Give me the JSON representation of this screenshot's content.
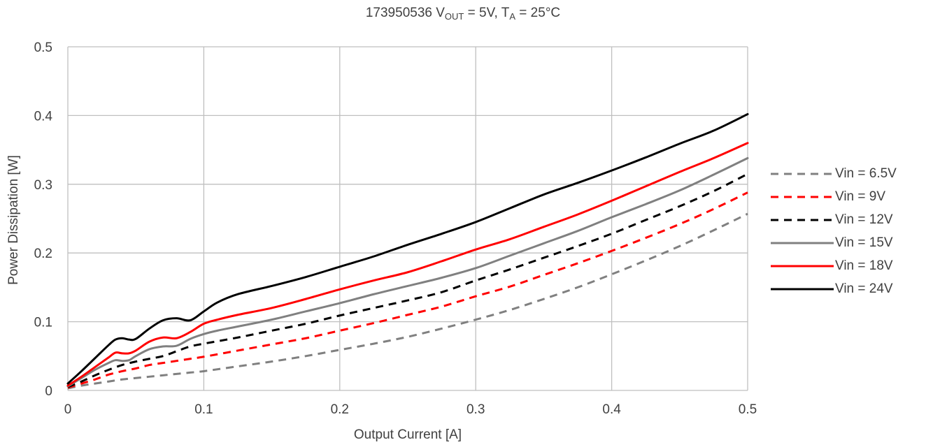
{
  "chart_data": {
    "type": "line",
    "title": {
      "prefix": "173950536 V",
      "sub1": "OUT",
      "mid": " = 5V, T",
      "sub2": "A",
      "suffix": " = 25°C"
    },
    "xlabel": "Output Current [A]",
    "ylabel": "Power Dissipation [W]",
    "xlim": [
      0,
      0.5
    ],
    "ylim": [
      0,
      0.5
    ],
    "xticks": [
      "0",
      "0.1",
      "0.2",
      "0.3",
      "0.4",
      "0.5"
    ],
    "yticks": [
      "0",
      "0.1",
      "0.2",
      "0.3",
      "0.4",
      "0.5"
    ],
    "grid": true,
    "legend_position": "right",
    "series": [
      {
        "name": "Vin = 6.5V",
        "color": "#808080",
        "dashed": true,
        "x": [
          0,
          0.01,
          0.02,
          0.03,
          0.04,
          0.05,
          0.06,
          0.07,
          0.08,
          0.09,
          0.1,
          0.125,
          0.15,
          0.175,
          0.2,
          0.225,
          0.25,
          0.275,
          0.3,
          0.325,
          0.35,
          0.375,
          0.4,
          0.425,
          0.45,
          0.475,
          0.5
        ],
        "y": [
          0.003,
          0.007,
          0.01,
          0.013,
          0.016,
          0.018,
          0.02,
          0.022,
          0.024,
          0.026,
          0.028,
          0.035,
          0.042,
          0.05,
          0.059,
          0.068,
          0.078,
          0.09,
          0.103,
          0.117,
          0.133,
          0.15,
          0.169,
          0.189,
          0.21,
          0.233,
          0.257
        ]
      },
      {
        "name": "Vin = 9V",
        "color": "#ff0000",
        "dashed": true,
        "x": [
          0,
          0.01,
          0.02,
          0.03,
          0.04,
          0.05,
          0.06,
          0.07,
          0.08,
          0.09,
          0.1,
          0.125,
          0.15,
          0.175,
          0.2,
          0.225,
          0.25,
          0.275,
          0.3,
          0.325,
          0.35,
          0.375,
          0.4,
          0.425,
          0.45,
          0.475,
          0.5
        ],
        "y": [
          0.004,
          0.01,
          0.016,
          0.023,
          0.028,
          0.032,
          0.037,
          0.04,
          0.043,
          0.046,
          0.049,
          0.058,
          0.067,
          0.076,
          0.087,
          0.098,
          0.11,
          0.122,
          0.137,
          0.151,
          0.168,
          0.185,
          0.203,
          0.222,
          0.242,
          0.264,
          0.288
        ]
      },
      {
        "name": "Vin = 12V",
        "color": "#000000",
        "dashed": true,
        "x": [
          0,
          0.01,
          0.02,
          0.03,
          0.04,
          0.05,
          0.06,
          0.07,
          0.08,
          0.09,
          0.1,
          0.125,
          0.15,
          0.175,
          0.2,
          0.225,
          0.25,
          0.275,
          0.3,
          0.325,
          0.35,
          0.375,
          0.4,
          0.425,
          0.45,
          0.475,
          0.5
        ],
        "y": [
          0.005,
          0.013,
          0.022,
          0.03,
          0.037,
          0.042,
          0.046,
          0.05,
          0.057,
          0.064,
          0.068,
          0.077,
          0.087,
          0.097,
          0.109,
          0.12,
          0.131,
          0.143,
          0.16,
          0.176,
          0.193,
          0.21,
          0.228,
          0.248,
          0.268,
          0.29,
          0.315
        ]
      },
      {
        "name": "Vin = 15V",
        "color": "#808080",
        "dashed": false,
        "x": [
          0,
          0.01,
          0.02,
          0.03,
          0.035,
          0.04,
          0.045,
          0.05,
          0.06,
          0.07,
          0.08,
          0.09,
          0.1,
          0.11,
          0.125,
          0.15,
          0.175,
          0.2,
          0.225,
          0.25,
          0.275,
          0.3,
          0.325,
          0.35,
          0.375,
          0.4,
          0.425,
          0.45,
          0.475,
          0.5
        ],
        "y": [
          0.006,
          0.018,
          0.03,
          0.04,
          0.044,
          0.043,
          0.044,
          0.05,
          0.06,
          0.064,
          0.065,
          0.075,
          0.082,
          0.087,
          0.093,
          0.103,
          0.115,
          0.127,
          0.14,
          0.152,
          0.164,
          0.178,
          0.196,
          0.214,
          0.232,
          0.252,
          0.271,
          0.291,
          0.314,
          0.338
        ]
      },
      {
        "name": "Vin = 18V",
        "color": "#ff0000",
        "dashed": false,
        "x": [
          0,
          0.01,
          0.02,
          0.03,
          0.035,
          0.04,
          0.045,
          0.05,
          0.06,
          0.07,
          0.08,
          0.09,
          0.1,
          0.11,
          0.125,
          0.15,
          0.175,
          0.2,
          0.225,
          0.25,
          0.275,
          0.3,
          0.325,
          0.35,
          0.375,
          0.4,
          0.425,
          0.45,
          0.475,
          0.5
        ],
        "y": [
          0.007,
          0.02,
          0.034,
          0.048,
          0.055,
          0.054,
          0.054,
          0.058,
          0.071,
          0.077,
          0.076,
          0.085,
          0.097,
          0.103,
          0.11,
          0.12,
          0.133,
          0.147,
          0.16,
          0.172,
          0.188,
          0.205,
          0.22,
          0.238,
          0.256,
          0.276,
          0.297,
          0.318,
          0.338,
          0.36
        ]
      },
      {
        "name": "Vin = 24V",
        "color": "#000000",
        "dashed": false,
        "x": [
          0,
          0.01,
          0.02,
          0.03,
          0.035,
          0.04,
          0.045,
          0.05,
          0.06,
          0.07,
          0.08,
          0.09,
          0.1,
          0.11,
          0.125,
          0.15,
          0.175,
          0.2,
          0.225,
          0.25,
          0.275,
          0.3,
          0.325,
          0.35,
          0.375,
          0.4,
          0.425,
          0.45,
          0.475,
          0.5
        ],
        "y": [
          0.01,
          0.028,
          0.047,
          0.066,
          0.074,
          0.076,
          0.074,
          0.075,
          0.09,
          0.102,
          0.105,
          0.102,
          0.115,
          0.128,
          0.14,
          0.152,
          0.165,
          0.18,
          0.195,
          0.212,
          0.228,
          0.245,
          0.265,
          0.285,
          0.302,
          0.32,
          0.339,
          0.359,
          0.378,
          0.402
        ]
      }
    ]
  }
}
